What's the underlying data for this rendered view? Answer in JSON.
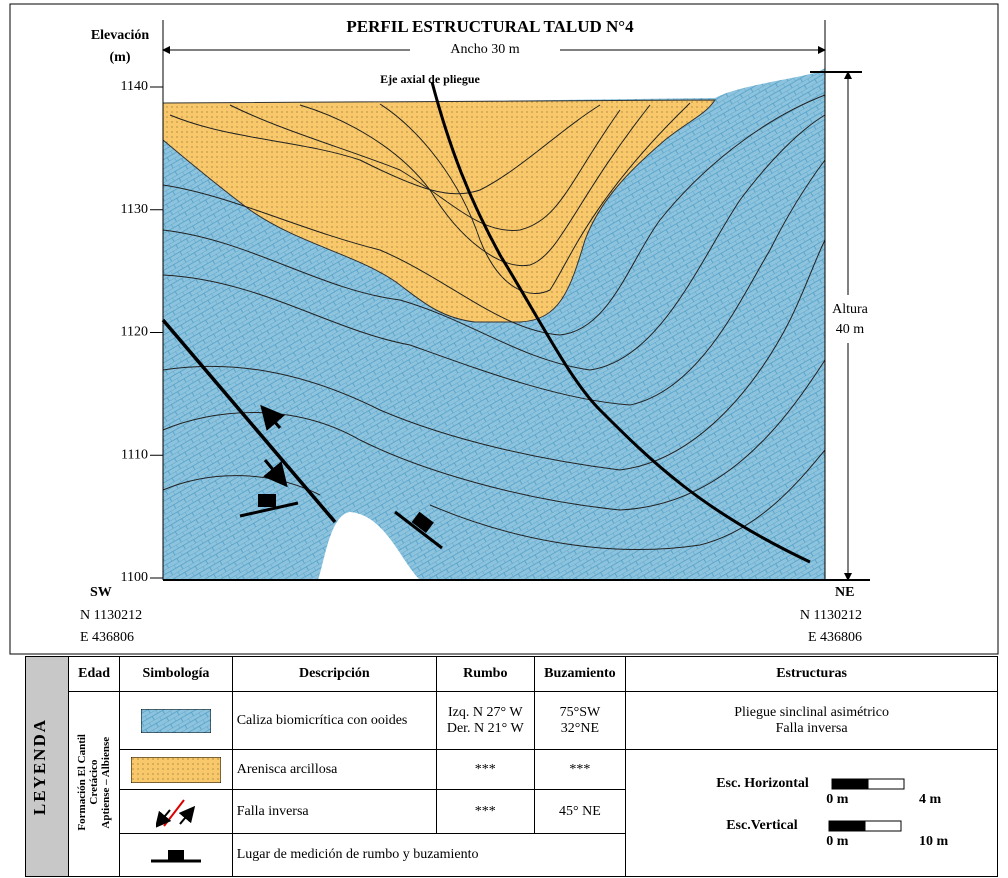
{
  "header": {
    "title": "PERFIL ESTRUCTURAL TALUD N°4",
    "elevation_label": "Elevación",
    "elevation_unit": "(m)",
    "width_label": "Ancho  30 m",
    "height_label": "Altura",
    "height_value": "40 m",
    "axis_label": "Eje axial de pliegue"
  },
  "elevation_ticks": [
    1140,
    1130,
    1120,
    1110,
    1100
  ],
  "stations": [
    {
      "side": "SW",
      "north": "N 1130212",
      "east": "E 436806"
    },
    {
      "side": "NE",
      "north": "N 1130212",
      "east": "E 436806"
    }
  ],
  "legend": {
    "title": "LEYENDA",
    "formation": [
      "Formación El Cantil",
      "Cretácico",
      "Aptiense – Albiense"
    ],
    "columns": [
      "Edad",
      "Simbología",
      "Descripción",
      "Rumbo",
      "Buzamiento",
      "Estructuras"
    ],
    "rows": [
      {
        "description": "Caliza biomicrítica con ooides",
        "rumbo": [
          "Izq. N 27° W",
          "Der. N 21° W"
        ],
        "buzamiento": [
          "75°SW",
          "32°NE"
        ]
      },
      {
        "description": "Arenisca arcillosa",
        "rumbo": [
          "***"
        ],
        "buzamiento": [
          "***"
        ]
      },
      {
        "description": "Falla inversa",
        "rumbo": [
          "***"
        ],
        "buzamiento": [
          "45° NE"
        ]
      },
      {
        "description": "Lugar de medición  de rumbo y buzamiento"
      }
    ],
    "structures": [
      "Pliegue sinclinal asimétrico",
      "Falla inversa"
    ],
    "scales": [
      {
        "label": "Esc. Horizontal",
        "start": "0 m",
        "end": "4 m"
      },
      {
        "label": "Esc.Vertical",
        "start": "0 m",
        "end": "10 m"
      }
    ]
  }
}
